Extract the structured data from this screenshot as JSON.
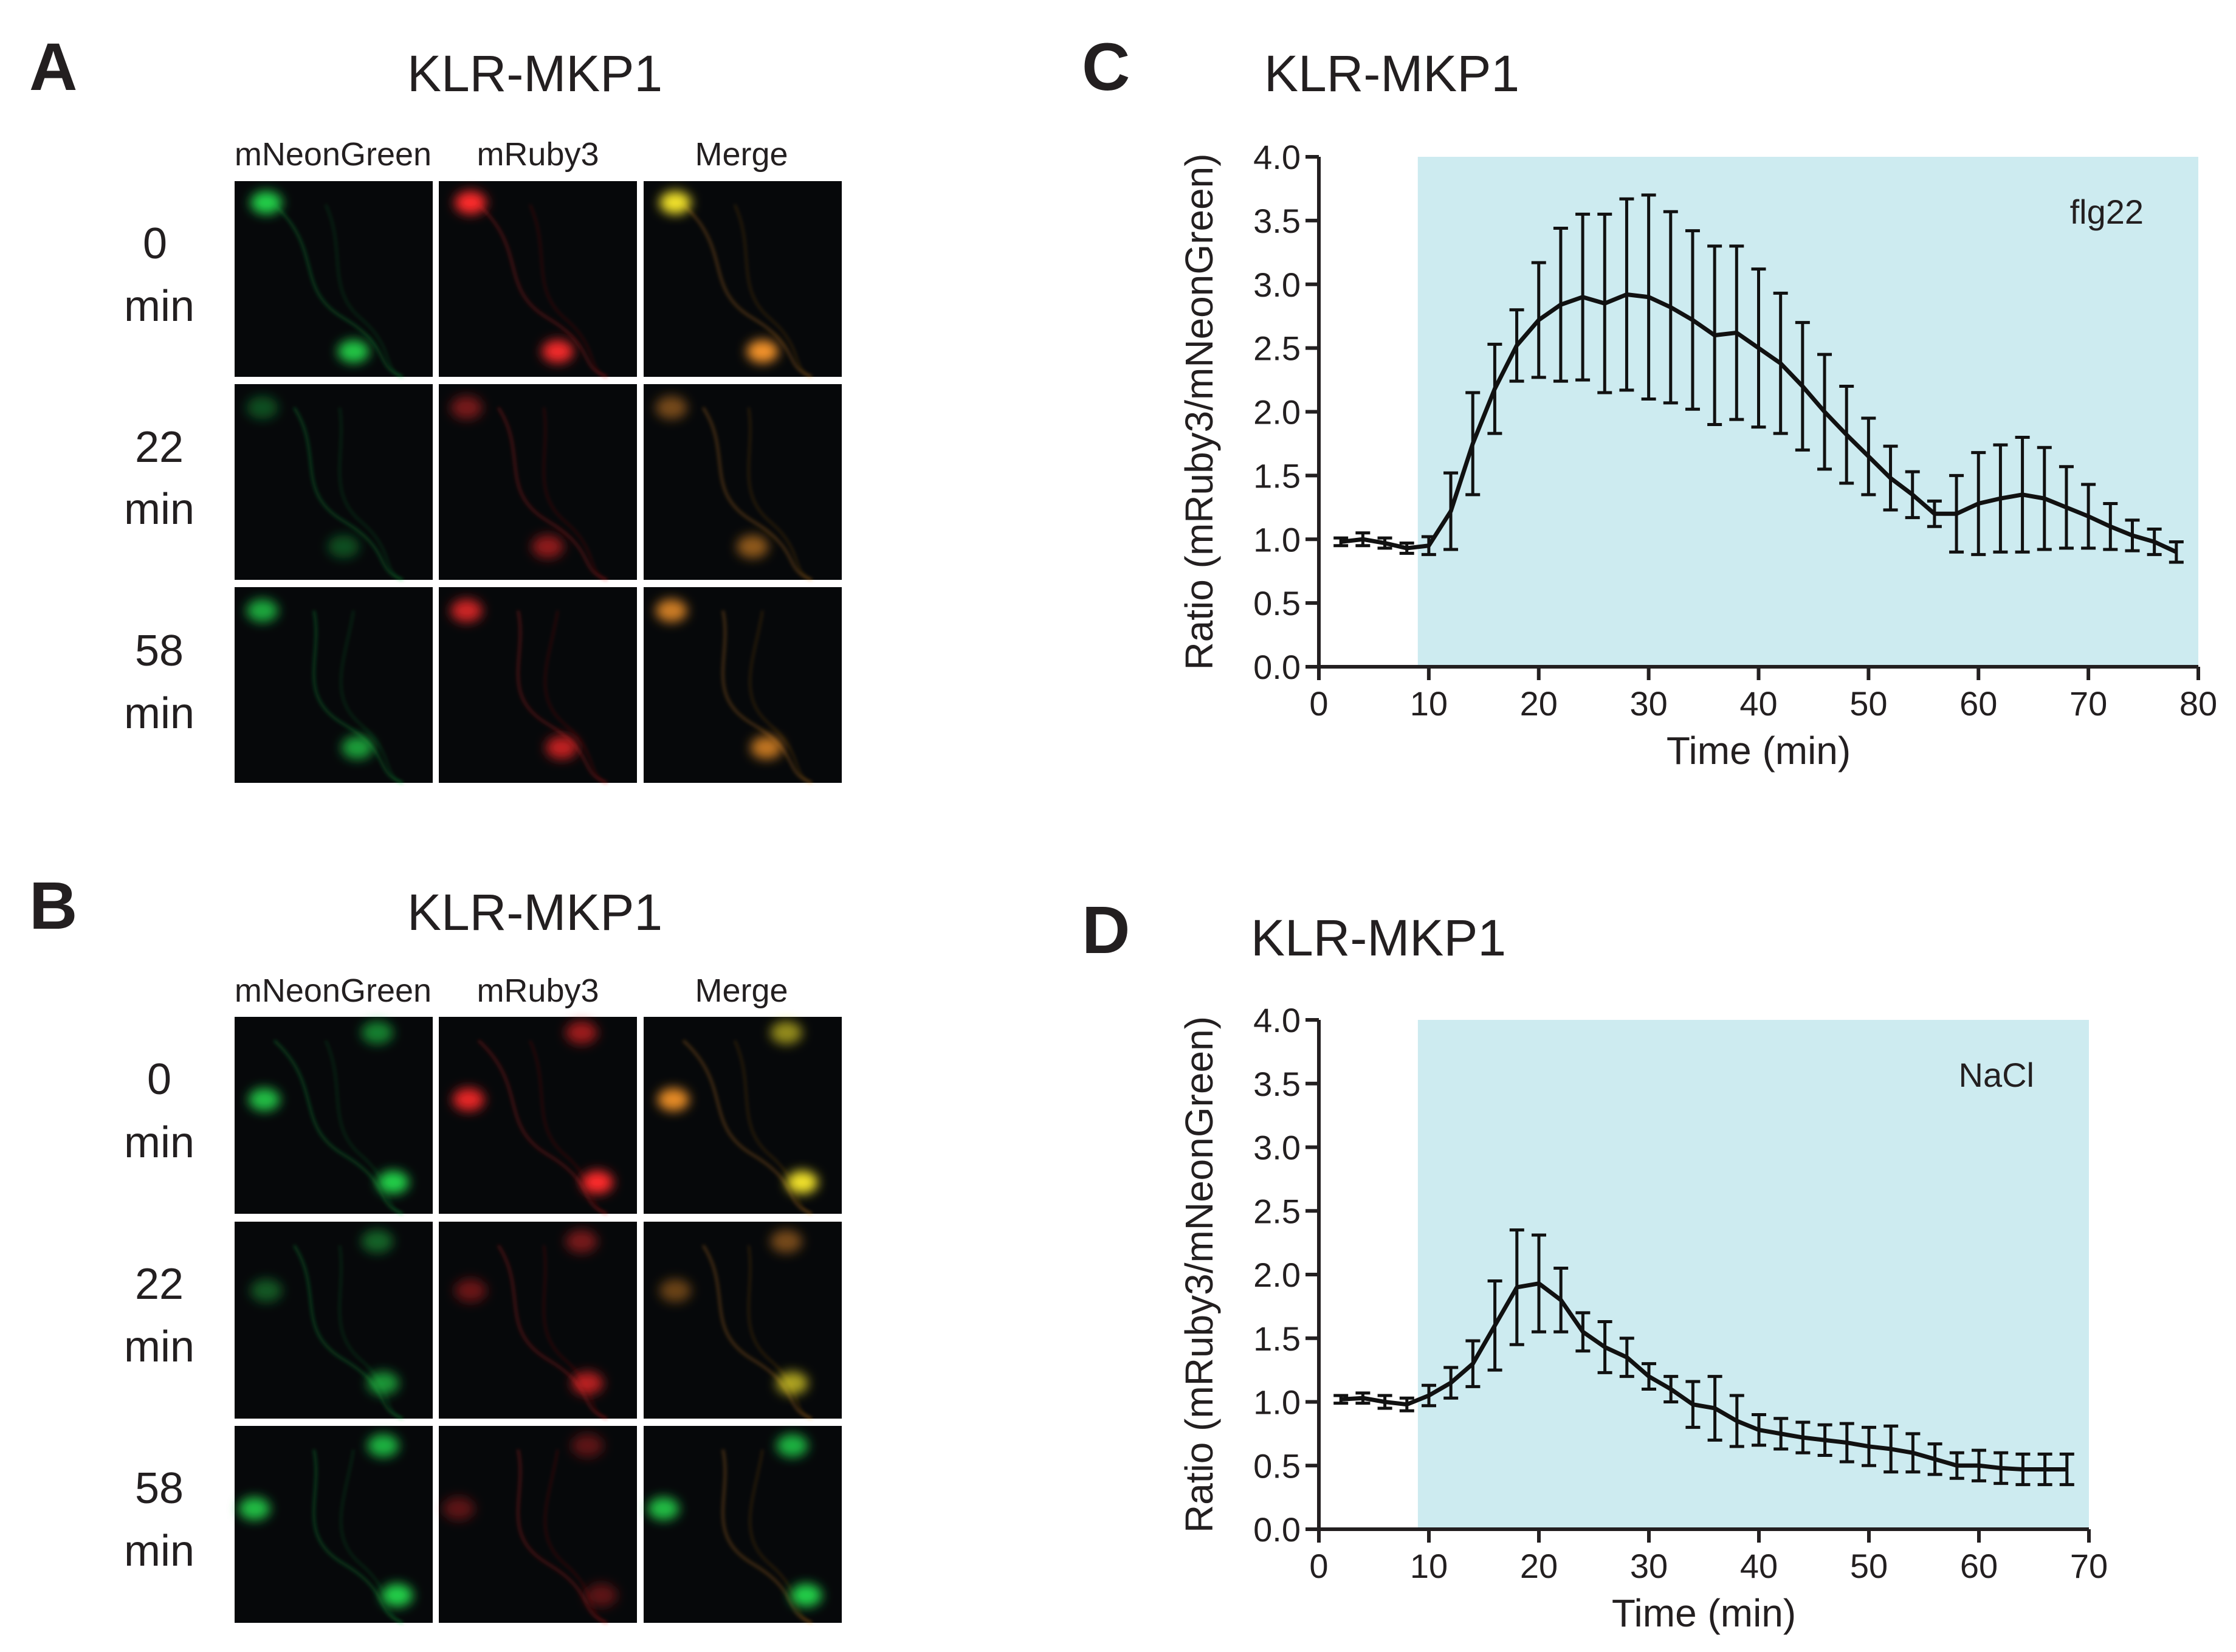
{
  "panels": {
    "A": {
      "letter": "A",
      "title": "KLR-MKP1"
    },
    "B": {
      "letter": "B",
      "title": "KLR-MKP1"
    },
    "C": {
      "letter": "C",
      "title": "KLR-MKP1"
    },
    "D": {
      "letter": "D",
      "title": "KLR-MKP1"
    }
  },
  "microscopy": {
    "channels": [
      "mNeonGreen",
      "mRuby3",
      "Merge"
    ],
    "rows": [
      {
        "time": "0",
        "unit": "min"
      },
      {
        "time": "22",
        "unit": "min"
      },
      {
        "time": "58",
        "unit": "min"
      }
    ],
    "colors": {
      "green": "#22d04a",
      "red": "#ff2a2a",
      "yellow": "#f2e22a",
      "orange": "#ff9a2a",
      "background": "#06080a"
    }
  },
  "chart_data": [
    {
      "type": "line",
      "panel": "C",
      "title": "KLR-MKP1",
      "xlabel": "Time (min)",
      "ylabel": "Ratio (mRuby3/mNeonGreen)",
      "xlim": [
        0,
        80
      ],
      "ylim": [
        0.0,
        4.0
      ],
      "xticks": [
        0,
        10,
        20,
        30,
        40,
        50,
        60,
        70,
        80
      ],
      "yticks": [
        "0.0",
        "0.5",
        "1.0",
        "1.5",
        "2.0",
        "2.5",
        "3.0",
        "3.5",
        "4.0"
      ],
      "treatment": {
        "label": "flg22",
        "x_start": 9,
        "x_end": 80,
        "color": "#cdebf0"
      },
      "series": [
        {
          "name": "KLR-MKP1",
          "x": [
            2,
            4,
            6,
            8,
            10,
            12,
            14,
            16,
            18,
            20,
            22,
            24,
            26,
            28,
            30,
            32,
            34,
            36,
            38,
            40,
            42,
            44,
            46,
            48,
            50,
            52,
            54,
            56,
            58,
            60,
            62,
            64,
            66,
            68,
            70,
            72,
            74,
            76,
            78
          ],
          "y": [
            0.98,
            1.0,
            0.97,
            0.93,
            0.95,
            1.22,
            1.75,
            2.18,
            2.52,
            2.72,
            2.84,
            2.9,
            2.85,
            2.92,
            2.9,
            2.82,
            2.72,
            2.6,
            2.62,
            2.5,
            2.38,
            2.2,
            2.0,
            1.82,
            1.65,
            1.48,
            1.35,
            1.2,
            1.2,
            1.28,
            1.32,
            1.35,
            1.32,
            1.25,
            1.18,
            1.1,
            1.03,
            0.98,
            0.9
          ],
          "error": [
            0.03,
            0.05,
            0.04,
            0.04,
            0.07,
            0.3,
            0.4,
            0.35,
            0.28,
            0.45,
            0.6,
            0.65,
            0.7,
            0.75,
            0.8,
            0.75,
            0.7,
            0.7,
            0.68,
            0.62,
            0.55,
            0.5,
            0.45,
            0.38,
            0.3,
            0.25,
            0.18,
            0.1,
            0.3,
            0.4,
            0.42,
            0.45,
            0.4,
            0.32,
            0.25,
            0.18,
            0.12,
            0.1,
            0.08
          ]
        }
      ]
    },
    {
      "type": "line",
      "panel": "D",
      "title": "KLR-MKP1",
      "xlabel": "Time (min)",
      "ylabel": "Ratio (mRuby3/mNeonGreen)",
      "xlim": [
        0,
        70
      ],
      "ylim": [
        0.0,
        4.0
      ],
      "xticks": [
        0,
        10,
        20,
        30,
        40,
        50,
        60,
        70
      ],
      "yticks": [
        "0.0",
        "0.5",
        "1.0",
        "1.5",
        "2.0",
        "2.5",
        "3.0",
        "3.5",
        "4.0"
      ],
      "treatment": {
        "label": "NaCl",
        "x_start": 9,
        "x_end": 70,
        "color": "#cdebf0"
      },
      "series": [
        {
          "name": "KLR-MKP1",
          "x": [
            2,
            4,
            6,
            8,
            10,
            12,
            14,
            16,
            18,
            20,
            22,
            24,
            26,
            28,
            30,
            32,
            34,
            36,
            38,
            40,
            42,
            44,
            46,
            48,
            50,
            52,
            54,
            56,
            58,
            60,
            62,
            64,
            66,
            68
          ],
          "y": [
            1.02,
            1.03,
            1.0,
            0.98,
            1.05,
            1.15,
            1.3,
            1.6,
            1.9,
            1.93,
            1.8,
            1.55,
            1.43,
            1.35,
            1.2,
            1.1,
            0.98,
            0.95,
            0.85,
            0.78,
            0.75,
            0.72,
            0.7,
            0.68,
            0.65,
            0.63,
            0.6,
            0.55,
            0.5,
            0.5,
            0.48,
            0.47,
            0.47,
            0.47
          ],
          "error": [
            0.03,
            0.04,
            0.05,
            0.05,
            0.08,
            0.12,
            0.18,
            0.35,
            0.45,
            0.38,
            0.25,
            0.15,
            0.2,
            0.15,
            0.1,
            0.1,
            0.18,
            0.25,
            0.2,
            0.12,
            0.12,
            0.12,
            0.12,
            0.15,
            0.15,
            0.18,
            0.15,
            0.12,
            0.1,
            0.12,
            0.12,
            0.12,
            0.12,
            0.12
          ]
        }
      ]
    }
  ]
}
